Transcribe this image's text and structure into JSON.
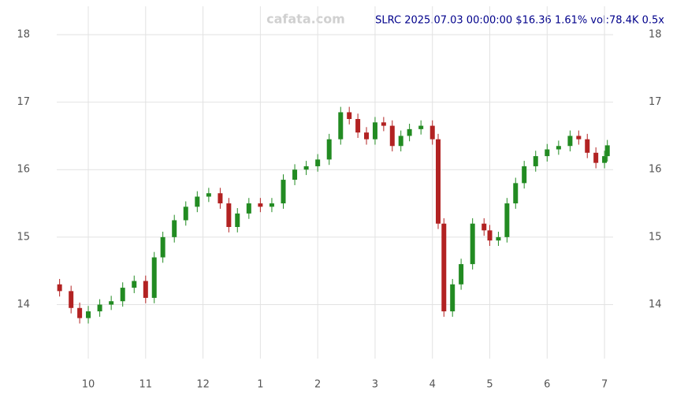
{
  "chart_data": {
    "type": "candlestick",
    "title": "SLRC 2025.07.03 00:00:00 $16.36 1.61% vol:78.4K 0.5x",
    "watermark": "cafata.com",
    "x": [
      9.5,
      9.7,
      9.85,
      10.0,
      10.2,
      10.4,
      10.6,
      10.8,
      11.0,
      11.15,
      11.3,
      11.5,
      11.7,
      11.9,
      12.1,
      12.3,
      12.45,
      12.6,
      12.8,
      13.0,
      13.2,
      13.4,
      13.6,
      13.8,
      14.0,
      14.2,
      14.4,
      14.55,
      14.7,
      14.85,
      15.0,
      15.15,
      15.3,
      15.45,
      15.6,
      15.8,
      16.0,
      16.1,
      16.2,
      16.35,
      16.5,
      16.7,
      16.9,
      17.0,
      17.15,
      17.3,
      17.45,
      17.6,
      17.8,
      18.0,
      18.2,
      18.4,
      18.55,
      18.7,
      18.85,
      19.0,
      19.05
    ],
    "open": [
      14.3,
      14.2,
      13.95,
      13.8,
      13.9,
      14.0,
      14.05,
      14.25,
      14.35,
      14.1,
      14.7,
      15.0,
      15.25,
      15.45,
      15.6,
      15.65,
      15.5,
      15.15,
      15.35,
      15.5,
      15.45,
      15.5,
      15.85,
      16.0,
      16.05,
      16.15,
      16.45,
      16.85,
      16.75,
      16.55,
      16.45,
      16.7,
      16.65,
      16.35,
      16.5,
      16.6,
      16.65,
      16.45,
      15.2,
      13.9,
      14.3,
      14.6,
      15.2,
      15.1,
      14.95,
      15.0,
      15.5,
      15.8,
      16.05,
      16.2,
      16.3,
      16.35,
      16.5,
      16.45,
      16.25,
      16.1,
      16.2
    ],
    "high": [
      14.38,
      14.28,
      14.03,
      13.98,
      14.08,
      14.13,
      14.33,
      14.43,
      14.43,
      14.78,
      15.08,
      15.33,
      15.53,
      15.68,
      15.73,
      15.73,
      15.58,
      15.43,
      15.58,
      15.58,
      15.58,
      15.93,
      16.08,
      16.13,
      16.23,
      16.53,
      16.93,
      16.93,
      16.83,
      16.63,
      16.78,
      16.78,
      16.73,
      16.58,
      16.68,
      16.73,
      16.73,
      16.53,
      15.28,
      14.38,
      14.68,
      15.28,
      15.28,
      15.18,
      15.08,
      15.58,
      15.88,
      16.13,
      16.28,
      16.38,
      16.43,
      16.58,
      16.58,
      16.53,
      16.33,
      16.28,
      16.44
    ],
    "low": [
      14.12,
      13.87,
      13.72,
      13.72,
      13.82,
      13.92,
      13.97,
      14.17,
      14.02,
      14.02,
      14.62,
      14.92,
      15.17,
      15.37,
      15.52,
      15.42,
      15.07,
      15.07,
      15.27,
      15.37,
      15.37,
      15.42,
      15.77,
      15.92,
      15.97,
      16.07,
      16.37,
      16.67,
      16.47,
      16.37,
      16.37,
      16.57,
      16.27,
      16.27,
      16.42,
      16.52,
      16.37,
      15.12,
      13.82,
      13.82,
      14.22,
      14.52,
      15.02,
      14.87,
      14.87,
      14.92,
      15.42,
      15.72,
      15.97,
      16.12,
      16.22,
      16.27,
      16.37,
      16.17,
      16.02,
      16.02,
      16.12
    ],
    "close": [
      14.2,
      13.95,
      13.8,
      13.9,
      14.0,
      14.05,
      14.25,
      14.35,
      14.1,
      14.7,
      15.0,
      15.25,
      15.45,
      15.6,
      15.65,
      15.5,
      15.15,
      15.35,
      15.5,
      15.45,
      15.5,
      15.85,
      16.0,
      16.05,
      16.15,
      16.45,
      16.85,
      16.75,
      16.55,
      16.45,
      16.7,
      16.65,
      16.35,
      16.5,
      16.6,
      16.65,
      16.45,
      15.2,
      13.9,
      14.3,
      14.6,
      15.2,
      15.1,
      14.95,
      15.0,
      15.5,
      15.8,
      16.05,
      16.2,
      16.3,
      16.35,
      16.5,
      16.45,
      16.25,
      16.1,
      16.2,
      16.36
    ],
    "up_color": "#228b22",
    "down_color": "#b22222",
    "xlim": [
      9.45,
      19.15
    ],
    "xticks": [
      10,
      11,
      12,
      {
        "value": 13,
        "label": "1"
      },
      {
        "value": 14,
        "label": "2"
      },
      {
        "value": 15,
        "label": "3"
      },
      {
        "value": 16,
        "label": "4"
      },
      {
        "value": 17,
        "label": "5"
      },
      {
        "value": 18,
        "label": "6"
      },
      {
        "value": 19,
        "label": "7"
      }
    ],
    "ylim": [
      13.2,
      18.42
    ],
    "yticks": [
      14,
      15,
      16,
      17,
      18
    ],
    "grid": true
  }
}
